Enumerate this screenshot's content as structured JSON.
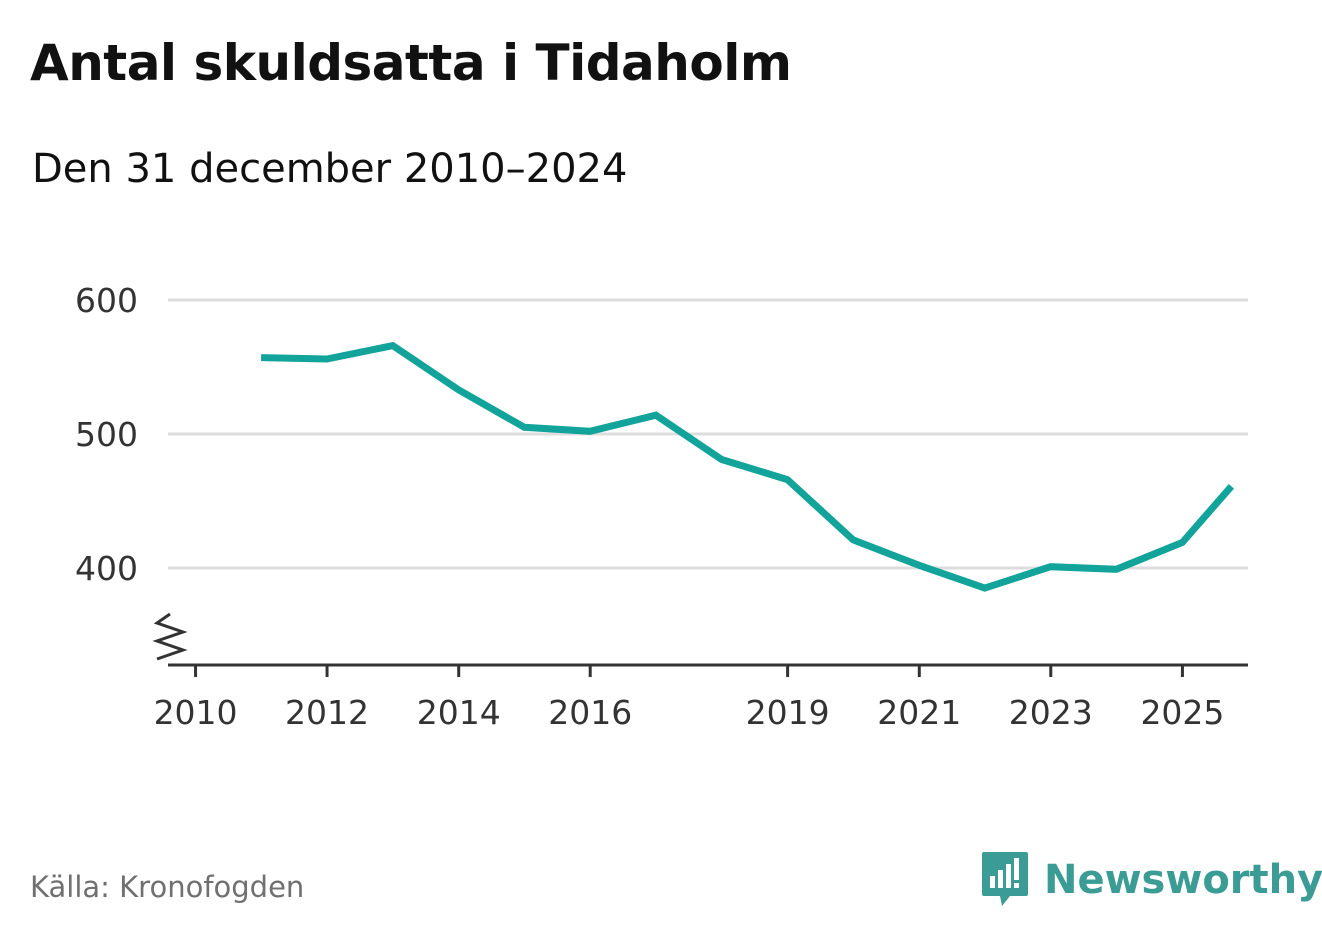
{
  "title": "Antal skuldsatta i Tidaholm",
  "subtitle": "Den 31 december 2010–2024",
  "source": "Källa: Kronofogden",
  "brand": {
    "name": "Newsworthy",
    "icon": "newsworthy-logo-icon",
    "color": "#3a9c94"
  },
  "colors": {
    "line": "#12a39a",
    "grid": "#dddddd",
    "axis": "#333333"
  },
  "chart_data": {
    "type": "line",
    "title": "Antal skuldsatta i Tidaholm",
    "subtitle": "Den 31 december 2010–2024",
    "xlabel": "",
    "ylabel": "",
    "x_ticks": [
      "2010",
      "2012",
      "2014",
      "2016",
      "2019",
      "2021",
      "2023",
      "2025"
    ],
    "y_ticks": [
      400,
      500,
      600
    ],
    "xlim": [
      "2009-08-01",
      "2025-12-31"
    ],
    "ylim": [
      328,
      600
    ],
    "y_axis_break": true,
    "grid": true,
    "series": [
      {
        "name": "",
        "x": [
          "2010-12-31",
          "2011-12-31",
          "2012-12-31",
          "2013-12-31",
          "2014-12-31",
          "2015-12-31",
          "2016-12-31",
          "2017-12-31",
          "2018-12-31",
          "2019-12-31",
          "2020-12-31",
          "2021-12-31",
          "2022-12-31",
          "2023-12-31",
          "2024-12-31"
        ],
        "values": [
          557,
          556,
          566,
          533,
          505,
          502,
          514,
          481,
          466,
          421,
          402,
          385,
          401,
          399,
          419
        ]
      }
    ],
    "extra_point": {
      "x": "2025-09-30",
      "value": 461
    }
  }
}
